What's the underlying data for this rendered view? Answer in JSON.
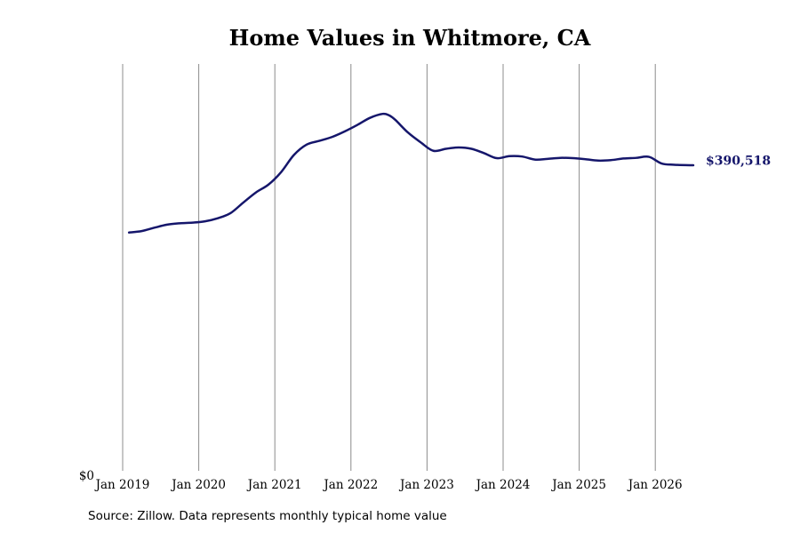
{
  "chart_data": {
    "type": "line",
    "title": "Home Values in Whitmore, CA",
    "xlabel": "",
    "ylabel": "",
    "x_tick_labels": [
      "Jan 2019",
      "Jan 2020",
      "Jan 2021",
      "Jan 2022",
      "Jan 2023",
      "Jan 2024",
      "Jan 2025",
      "Jan 2026"
    ],
    "y_tick_labels": [
      "$0"
    ],
    "ylim": [
      0,
      520000
    ],
    "grid": "vertical",
    "line_color": "#15166b",
    "end_label": "$390,518",
    "series": [
      {
        "x": [
          "2019-02",
          "2019-04",
          "2019-06",
          "2019-08",
          "2019-10",
          "2019-12",
          "2020-02",
          "2020-04",
          "2020-06",
          "2020-08",
          "2020-10",
          "2020-12",
          "2021-02",
          "2021-04",
          "2021-06",
          "2021-08",
          "2021-10",
          "2021-12",
          "2022-02",
          "2022-04",
          "2022-06",
          "2022-07",
          "2022-08",
          "2022-10",
          "2022-12",
          "2023-02",
          "2023-04",
          "2023-06",
          "2023-08",
          "2023-10",
          "2023-12",
          "2024-02",
          "2024-04",
          "2024-06",
          "2024-08",
          "2024-10",
          "2024-12",
          "2025-02",
          "2025-04",
          "2025-06",
          "2025-08",
          "2025-10",
          "2025-12",
          "2026-02",
          "2026-04",
          "2026-07"
        ],
        "values": [
          304600,
          306400,
          310700,
          314600,
          316400,
          317200,
          318900,
          322800,
          329300,
          342700,
          355700,
          365900,
          381900,
          403600,
          416900,
          421700,
          426600,
          433700,
          442000,
          451100,
          456200,
          454400,
          448500,
          432300,
          419800,
          409000,
          411600,
          413300,
          411600,
          406000,
          399600,
          402200,
          401700,
          397800,
          398700,
          400000,
          399600,
          398200,
          396500,
          397100,
          399200,
          400000,
          401300,
          392800,
          391200,
          390518
        ]
      }
    ]
  },
  "source": "Source: Zillow. Data represents monthly typical home value"
}
